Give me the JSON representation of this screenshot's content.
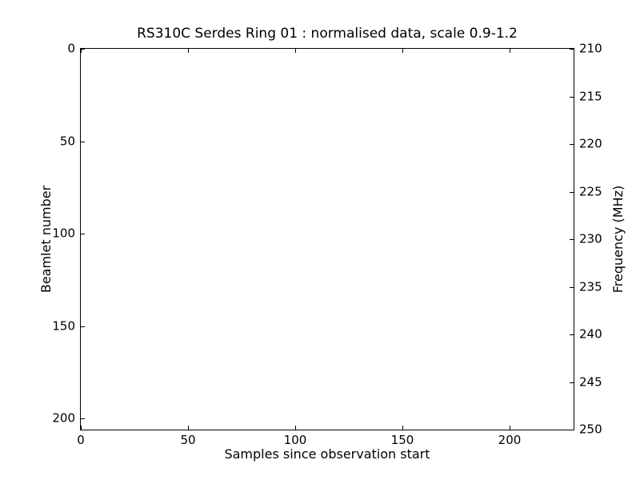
{
  "figure": {
    "background_color": "#ffffff",
    "frame_color": "#000000",
    "text_color": "#000000"
  },
  "chart_data": {
    "type": "heatmap",
    "title": "RS310C Serdes Ring 01 : normalised data, scale 0.9-1.2",
    "xlabel": "Samples since observation start",
    "ylabel_left": "Beamlet number",
    "ylabel_right": "Frequency (MHz)",
    "xlim": [
      0,
      230
    ],
    "ylim_left": [
      0,
      206
    ],
    "ylim_right": [
      210,
      250
    ],
    "y_axis_inverted": true,
    "xticks": [
      "0",
      "50",
      "100",
      "150",
      "200"
    ],
    "yticks_left": [
      "0",
      "50",
      "100",
      "150",
      "200"
    ],
    "yticks_right": [
      "210",
      "215",
      "220",
      "225",
      "230",
      "235",
      "240",
      "245",
      "250"
    ],
    "grid": false,
    "legend": null,
    "values": [],
    "plot_area_note": "plot area is entirely blank/white - no visible data pixels rendered"
  }
}
